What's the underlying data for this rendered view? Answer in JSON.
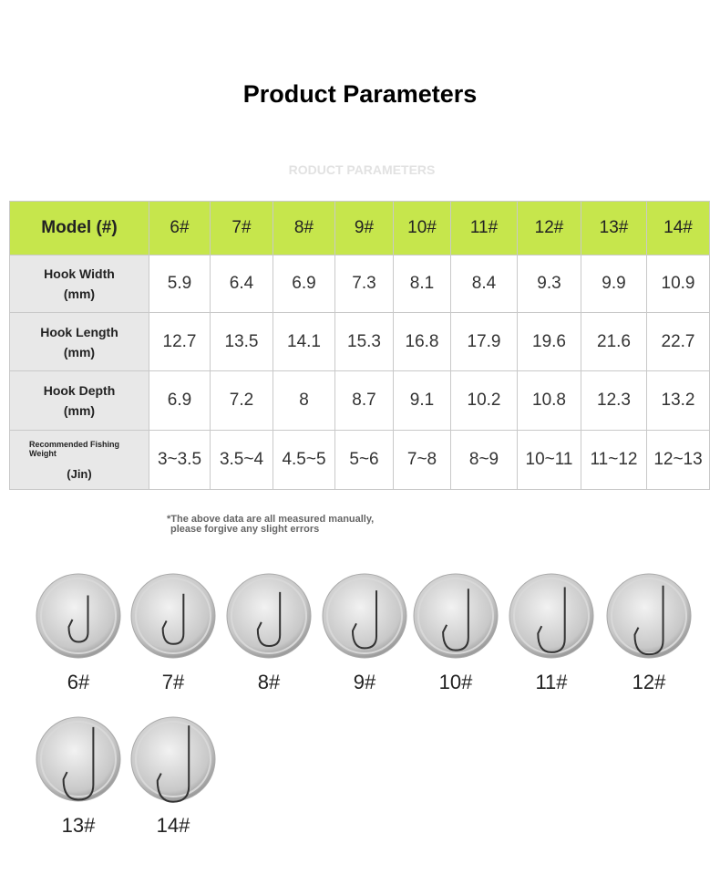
{
  "header": {
    "title": "Product Parameters",
    "subtitle": "RODUCT PARAMETERS"
  },
  "table": {
    "corner": "Model (#)",
    "models": [
      "6#",
      "7#",
      "8#",
      "9#",
      "10#",
      "11#",
      "12#",
      "13#",
      "14#"
    ],
    "rows": [
      {
        "label": "Hook Width",
        "unit": "(mm)",
        "values": [
          "5.9",
          "6.4",
          "6.9",
          "7.3",
          "8.1",
          "8.4",
          "9.3",
          "9.9",
          "10.9"
        ]
      },
      {
        "label": "Hook Length",
        "unit": "(mm)",
        "values": [
          "12.7",
          "13.5",
          "14.1",
          "15.3",
          "16.8",
          "17.9",
          "19.6",
          "21.6",
          "22.7"
        ]
      },
      {
        "label": "Hook Depth",
        "unit": "(mm)",
        "values": [
          "6.9",
          "7.2",
          "8",
          "8.7",
          "9.1",
          "10.2",
          "10.8",
          "12.3",
          "13.2"
        ]
      },
      {
        "label": "Recommended Fishing Weight",
        "unit": "(Jin)",
        "values": [
          "3~3.5",
          "3.5~4",
          "4.5~5",
          "5~6",
          "7~8",
          "8~9",
          "10~11",
          "11~12",
          "12~13"
        ]
      }
    ]
  },
  "note": [
    "*The above data are all measured manually,",
    "please forgive any slight errors"
  ],
  "sizes": [
    "6#",
    "7#",
    "8#",
    "9#",
    "10#",
    "11#",
    "12#",
    "13#",
    "14#"
  ]
}
